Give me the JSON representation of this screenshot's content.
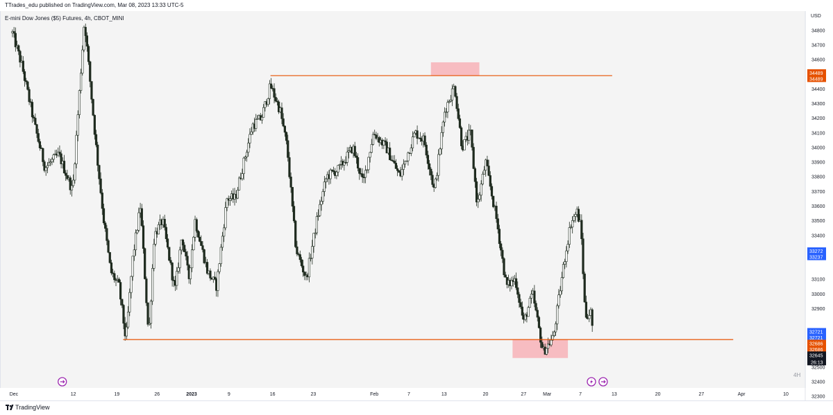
{
  "header": {
    "publisher_line": "TTrades_edu published on TradingView.com, Mar 08, 2023 13:33 UTC-5"
  },
  "chart": {
    "symbol_line": "E-mini Dow Jones ($5) Futures, 4h, CBOT_MINI",
    "axis_unit": "USD",
    "interval": "4H"
  },
  "footer": {
    "brand": "TradingView"
  },
  "colors": {
    "candle_up": "#ffffff",
    "candle_down": "#1e2a1e",
    "level_line": "#e65100",
    "zone_fill": "#f7b2b7",
    "price_tag_blue": "#2962ff",
    "price_tag_orange": "#e65100",
    "price_tag_black": "#131722",
    "event_icon": "#9c27b0"
  },
  "chart_data": {
    "type": "candlestick",
    "title": "E-mini Dow Jones ($5) Futures, 4h, CBOT_MINI",
    "y_axis": {
      "unit": "USD",
      "range": [
        32270,
        34930
      ],
      "ticks": [
        "34800",
        "34700",
        "34600",
        "34400",
        "34300",
        "34200",
        "34100",
        "34000",
        "33900",
        "33800",
        "33700",
        "33600",
        "33500",
        "33400",
        "33100",
        "33000",
        "32900",
        "32500",
        "32400",
        "32300"
      ]
    },
    "x_axis": {
      "range_index": [
        0,
        1120
      ],
      "ticks": [
        {
          "label": "Dec",
          "i": 10
        },
        {
          "label": "12",
          "i": 96
        },
        {
          "label": "19",
          "i": 159
        },
        {
          "label": "26",
          "i": 217
        },
        {
          "label": "2023",
          "i": 267
        },
        {
          "label": "9",
          "i": 321
        },
        {
          "label": "16",
          "i": 384
        },
        {
          "label": "23",
          "i": 443
        },
        {
          "label": "Feb",
          "i": 531
        },
        {
          "label": "7",
          "i": 581
        },
        {
          "label": "13",
          "i": 632
        },
        {
          "label": "20",
          "i": 692
        },
        {
          "label": "27",
          "i": 747
        },
        {
          "label": "Mar",
          "i": 781
        },
        {
          "label": "7",
          "i": 829
        },
        {
          "label": "13",
          "i": 878
        },
        {
          "label": "20",
          "i": 941
        },
        {
          "label": "27",
          "i": 1004
        },
        {
          "label": "Apr",
          "i": 1062
        },
        {
          "label": "10",
          "i": 1126
        }
      ]
    },
    "price_path": [
      {
        "i": 8,
        "v": 34780
      },
      {
        "i": 22,
        "v": 34550
      },
      {
        "i": 40,
        "v": 34150
      },
      {
        "i": 55,
        "v": 33860
      },
      {
        "i": 75,
        "v": 33950
      },
      {
        "i": 95,
        "v": 33700
      },
      {
        "i": 112,
        "v": 34870
      },
      {
        "i": 130,
        "v": 33950
      },
      {
        "i": 140,
        "v": 33500
      },
      {
        "i": 150,
        "v": 33150
      },
      {
        "i": 162,
        "v": 33050
      },
      {
        "i": 172,
        "v": 32680
      },
      {
        "i": 182,
        "v": 33250
      },
      {
        "i": 193,
        "v": 33600
      },
      {
        "i": 205,
        "v": 32700
      },
      {
        "i": 213,
        "v": 33400
      },
      {
        "i": 225,
        "v": 33500
      },
      {
        "i": 243,
        "v": 33020
      },
      {
        "i": 253,
        "v": 33400
      },
      {
        "i": 263,
        "v": 33100
      },
      {
        "i": 272,
        "v": 33500
      },
      {
        "i": 290,
        "v": 33150
      },
      {
        "i": 303,
        "v": 33050
      },
      {
        "i": 318,
        "v": 33650
      },
      {
        "i": 330,
        "v": 33650
      },
      {
        "i": 355,
        "v": 34150
      },
      {
        "i": 368,
        "v": 34200
      },
      {
        "i": 381,
        "v": 34420
      },
      {
        "i": 395,
        "v": 34250
      },
      {
        "i": 405,
        "v": 34000
      },
      {
        "i": 418,
        "v": 33300
      },
      {
        "i": 433,
        "v": 33100
      },
      {
        "i": 448,
        "v": 33500
      },
      {
        "i": 462,
        "v": 33800
      },
      {
        "i": 480,
        "v": 33850
      },
      {
        "i": 500,
        "v": 34000
      },
      {
        "i": 515,
        "v": 33750
      },
      {
        "i": 530,
        "v": 34100
      },
      {
        "i": 548,
        "v": 34000
      },
      {
        "i": 568,
        "v": 33800
      },
      {
        "i": 590,
        "v": 34100
      },
      {
        "i": 603,
        "v": 34050
      },
      {
        "i": 618,
        "v": 33700
      },
      {
        "i": 633,
        "v": 34250
      },
      {
        "i": 647,
        "v": 34420
      },
      {
        "i": 658,
        "v": 34000
      },
      {
        "i": 670,
        "v": 34100
      },
      {
        "i": 680,
        "v": 33600
      },
      {
        "i": 692,
        "v": 33900
      },
      {
        "i": 708,
        "v": 33500
      },
      {
        "i": 722,
        "v": 33050
      },
      {
        "i": 735,
        "v": 33100
      },
      {
        "i": 747,
        "v": 32800
      },
      {
        "i": 760,
        "v": 33000
      },
      {
        "i": 775,
        "v": 32600
      },
      {
        "i": 790,
        "v": 32700
      },
      {
        "i": 805,
        "v": 33200
      },
      {
        "i": 815,
        "v": 33480
      },
      {
        "i": 824,
        "v": 33560
      },
      {
        "i": 830,
        "v": 33450
      },
      {
        "i": 836,
        "v": 32850
      },
      {
        "i": 845,
        "v": 32870
      },
      {
        "i": 848,
        "v": 32645
      }
    ],
    "annotations": {
      "horizontal_levels": [
        {
          "price": 34489,
          "from_i": 381,
          "to_i": 875
        },
        {
          "price": 32686,
          "from_i": 168,
          "to_i": 1050
        }
      ],
      "zones": [
        {
          "from_i": 613,
          "to_i": 683,
          "price_low": 34489,
          "price_high": 34580
        },
        {
          "from_i": 731,
          "to_i": 811,
          "price_low": 32560,
          "price_high": 32686
        }
      ]
    },
    "price_tags": [
      {
        "label": "34489",
        "price": 34509,
        "color": "orange"
      },
      {
        "label": "34489",
        "price": 34469,
        "color": "orange"
      },
      {
        "label": "33272",
        "price": 33292,
        "color": "blue"
      },
      {
        "label": "33237",
        "price": 33252,
        "color": "blue"
      },
      {
        "label": "32721",
        "price": 32741,
        "color": "blue"
      },
      {
        "label": "32721",
        "price": 32701,
        "color": "blue"
      },
      {
        "label": "32686",
        "price": 32661,
        "color": "orange"
      },
      {
        "label": "32686",
        "price": 32621,
        "color": "orange"
      },
      {
        "label": "32645",
        "price": 32581,
        "color": "black",
        "countdown": "26:13"
      }
    ],
    "event_markers": [
      {
        "i": 80,
        "icon": "arrow-circle"
      },
      {
        "i": 845,
        "icon": "flash-circle"
      },
      {
        "i": 862,
        "icon": "arrow-circle"
      }
    ]
  }
}
